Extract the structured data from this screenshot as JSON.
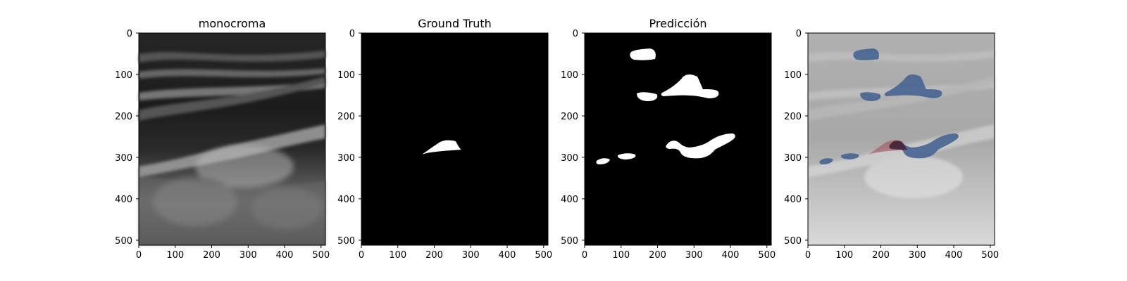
{
  "figure": {
    "panels": [
      {
        "id": "monocromo",
        "title": "monocroma",
        "content": "ultrasound-image"
      },
      {
        "id": "ground-truth",
        "title": "Ground Truth",
        "content": "binary-mask"
      },
      {
        "id": "prediccion",
        "title": "Predicción",
        "content": "binary-mask"
      },
      {
        "id": "overlay",
        "title": "",
        "content": "overlay"
      }
    ],
    "x_ticks": [
      0,
      100,
      200,
      300,
      400,
      500
    ],
    "y_ticks": [
      0,
      100,
      200,
      300,
      400,
      500
    ],
    "image_extent": [
      0,
      512
    ],
    "colors": {
      "mask_foreground": "#ffffff",
      "mask_background": "#000000",
      "prediction_overlay": "#3f5f8f",
      "ground_truth_overlay": "#a0505a"
    }
  }
}
